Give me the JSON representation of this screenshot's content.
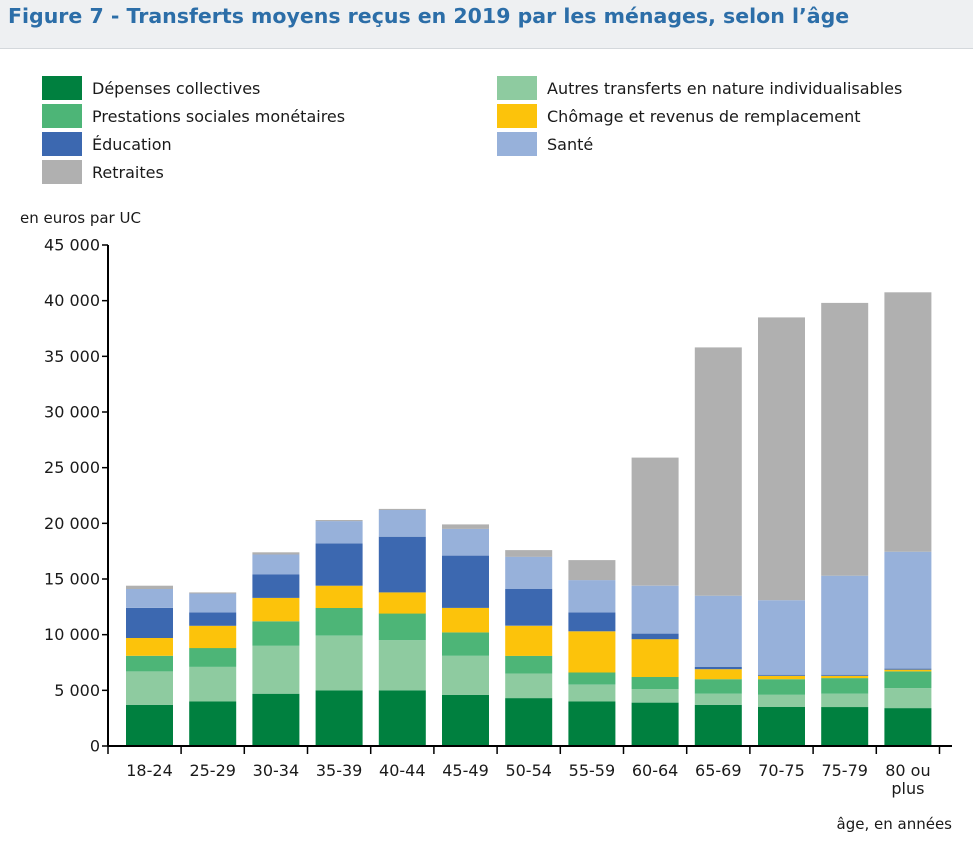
{
  "figure": {
    "title": "Figure 7 - Transferts moyens reçus en 2019 par les ménages, selon l’âge"
  },
  "colors": {
    "depenses_collectives": "#00803f",
    "autres_transferts": "#8ecba0",
    "prestations_sociales": "#4db577",
    "chomage": "#fcc30b",
    "education": "#3c68b0",
    "sante": "#97b1da",
    "retraites": "#b0b0b0"
  },
  "chart_data": {
    "type": "bar",
    "stacked": true,
    "ylabel": "en euros par UC",
    "xlabel": "âge, en années",
    "ylim": [
      0,
      45000
    ],
    "yticks": [
      0,
      5000,
      10000,
      15000,
      20000,
      25000,
      30000,
      35000,
      40000,
      45000
    ],
    "ytick_labels": [
      "0",
      "5 000",
      "10 000",
      "15 000",
      "20 000",
      "25 000",
      "30 000",
      "35 000",
      "40 000",
      "45 000"
    ],
    "grid": false,
    "legend_position": "top",
    "categories": [
      "18-24",
      "25-29",
      "30-34",
      "35-39",
      "40-44",
      "45-49",
      "50-54",
      "55-59",
      "60-64",
      "65-69",
      "70-75",
      "75-79",
      "80 ou plus"
    ],
    "category_lines": [
      [
        "18-24"
      ],
      [
        "25-29"
      ],
      [
        "30-34"
      ],
      [
        "35-39"
      ],
      [
        "40-44"
      ],
      [
        "45-49"
      ],
      [
        "50-54"
      ],
      [
        "55-59"
      ],
      [
        "60-64"
      ],
      [
        "65-69"
      ],
      [
        "70-75"
      ],
      [
        "75-79"
      ],
      [
        "80 ou",
        "plus"
      ]
    ],
    "series": [
      {
        "name": "Dépenses collectives",
        "color_key": "depenses_collectives",
        "values": [
          3700,
          4000,
          4700,
          5000,
          5000,
          4600,
          4300,
          4000,
          3900,
          3700,
          3500,
          3500,
          3400
        ]
      },
      {
        "name": "Autres transferts en nature individualisables",
        "color_key": "autres_transferts",
        "values": [
          3000,
          3100,
          4300,
          4900,
          4500,
          3500,
          2200,
          1500,
          1200,
          1000,
          1100,
          1200,
          1800
        ]
      },
      {
        "name": "Prestations sociales monétaires",
        "color_key": "prestations_sociales",
        "values": [
          1400,
          1700,
          2200,
          2500,
          2400,
          2100,
          1600,
          1100,
          1100,
          1300,
          1400,
          1400,
          1500
        ]
      },
      {
        "name": "Chômage et revenus de remplacement",
        "color_key": "chomage",
        "values": [
          1600,
          2000,
          2100,
          2000,
          1900,
          2200,
          2700,
          3700,
          3400,
          900,
          300,
          200,
          150
        ]
      },
      {
        "name": "Éducation",
        "color_key": "education",
        "values": [
          2700,
          1200,
          2100,
          3800,
          5000,
          4700,
          3300,
          1700,
          500,
          200,
          100,
          100,
          100
        ]
      },
      {
        "name": "Santé",
        "color_key": "sante",
        "values": [
          1700,
          1700,
          1800,
          2000,
          2400,
          2400,
          2900,
          2900,
          4300,
          6400,
          6700,
          8900,
          10500
        ]
      },
      {
        "name": "Retraites",
        "color_key": "retraites",
        "values": [
          300,
          100,
          200,
          100,
          100,
          400,
          600,
          1800,
          11500,
          22300,
          25400,
          24500,
          23300
        ]
      }
    ]
  },
  "legend": [
    {
      "label": "Dépenses collectives",
      "color_key": "depenses_collectives"
    },
    {
      "label": "Prestations sociales monétaires",
      "color_key": "prestations_sociales"
    },
    {
      "label": "Éducation",
      "color_key": "education"
    },
    {
      "label": "Retraites",
      "color_key": "retraites"
    },
    {
      "label": "Autres transferts en nature individualisables",
      "color_key": "autres_transferts"
    },
    {
      "label": "Chômage et revenus de remplacement",
      "color_key": "chomage"
    },
    {
      "label": "Santé",
      "color_key": "sante"
    }
  ]
}
